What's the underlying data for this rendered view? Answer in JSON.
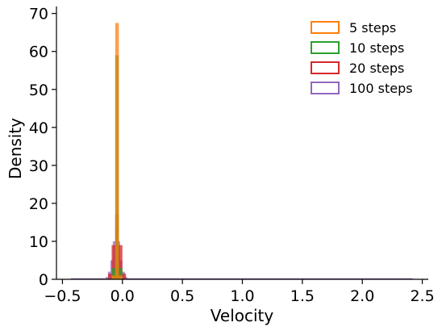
{
  "chart_data": {
    "type": "histogram",
    "title": "",
    "xlabel": "Velocity",
    "ylabel": "Density",
    "xlim": [
      -0.55,
      2.55
    ],
    "ylim": [
      0,
      71
    ],
    "xticks": [
      -0.5,
      0.0,
      0.5,
      1.0,
      1.5,
      2.0,
      2.5
    ],
    "xtick_labels": [
      "−0.5",
      "0.0",
      "0.5",
      "1.0",
      "1.5",
      "2.0",
      "2.5"
    ],
    "yticks": [
      0,
      10,
      20,
      30,
      40,
      50,
      60,
      70
    ],
    "ytick_labels": [
      "0",
      "10",
      "20",
      "30",
      "40",
      "50",
      "60",
      "70"
    ],
    "grid": false,
    "legend_position": "top-right",
    "series": [
      {
        "name": "5 steps",
        "color": "#ff7f0e",
        "style": "filled",
        "bins": [
          {
            "x0": -0.09,
            "x1": -0.06,
            "y": 1.0
          },
          {
            "x0": -0.06,
            "x1": -0.03,
            "y": 67.5
          },
          {
            "x0": -0.03,
            "x1": 0.0,
            "y": 1.0
          }
        ]
      },
      {
        "name": "10 steps",
        "color": "#2ca02c",
        "style": "filled",
        "bins": [
          {
            "x0": -0.09,
            "x1": -0.06,
            "y": 3.0
          },
          {
            "x0": -0.06,
            "x1": -0.03,
            "y": 59.0
          },
          {
            "x0": -0.03,
            "x1": 0.0,
            "y": 3.0
          }
        ]
      },
      {
        "name": "20 steps",
        "color": "#d62728",
        "style": "filled",
        "bins": [
          {
            "x0": -0.12,
            "x1": -0.09,
            "y": 1.5
          },
          {
            "x0": -0.09,
            "x1": -0.06,
            "y": 9.0
          },
          {
            "x0": -0.06,
            "x1": -0.03,
            "y": 17.0
          },
          {
            "x0": -0.03,
            "x1": 0.0,
            "y": 9.0
          },
          {
            "x0": 0.0,
            "x1": 0.03,
            "y": 1.5
          }
        ]
      },
      {
        "name": "100 steps",
        "color": "#9467bd",
        "style": "filled",
        "bins": [
          {
            "x0": -0.14,
            "x1": -0.12,
            "y": 0.6
          },
          {
            "x0": -0.12,
            "x1": -0.1,
            "y": 2.0
          },
          {
            "x0": -0.1,
            "x1": -0.08,
            "y": 5.0
          },
          {
            "x0": -0.08,
            "x1": -0.06,
            "y": 10.0
          },
          {
            "x0": -0.06,
            "x1": -0.04,
            "y": 14.0
          },
          {
            "x0": -0.04,
            "x1": -0.02,
            "y": 10.0
          },
          {
            "x0": -0.02,
            "x1": 0.0,
            "y": 5.0
          },
          {
            "x0": 0.0,
            "x1": 0.02,
            "y": 2.0
          },
          {
            "x0": 0.02,
            "x1": 0.04,
            "y": 0.6
          }
        ]
      }
    ],
    "baseline": {
      "x0": -0.43,
      "x1": 2.42,
      "color": "#9467bd"
    }
  }
}
